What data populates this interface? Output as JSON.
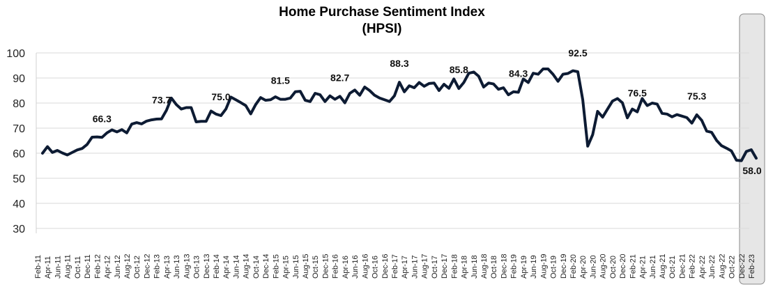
{
  "chart_data": {
    "type": "line",
    "title": "Home Purchase Sentiment Index",
    "subtitle": "(HPSI)",
    "xlabel": "",
    "ylabel": "",
    "ylim": [
      30,
      100
    ],
    "y_ticks": [
      "30",
      "40",
      "50",
      "60",
      "70",
      "80",
      "90",
      "100"
    ],
    "grid": true,
    "line_color": "#0d1b33",
    "highlight_color": "#e6e6e6",
    "x_ticks": [
      "Feb-11",
      "Apr-11",
      "Jun-11",
      "Aug-11",
      "Oct-11",
      "Dec-11",
      "Feb-12",
      "Apr-12",
      "Jun-12",
      "Aug-12",
      "Oct-12",
      "Dec-12",
      "Feb-13",
      "Apr-13",
      "Jun-13",
      "Aug-13",
      "Oct-13",
      "Dec-13",
      "Feb-14",
      "Apr-14",
      "Jun-14",
      "Aug-14",
      "Oct-14",
      "Dec-14",
      "Feb-15",
      "Apr-15",
      "Jun-15",
      "Aug-15",
      "Oct-15",
      "Dec-15",
      "Feb-16",
      "Apr-16",
      "Jun-16",
      "Aug-16",
      "Oct-16",
      "Dec-16",
      "Feb-17",
      "Apr-17",
      "Jun-17",
      "Aug-17",
      "Oct-17",
      "Dec-17",
      "Feb-18",
      "Apr-18",
      "Jun-18",
      "Aug-18",
      "Oct-18",
      "Dec-18",
      "Feb-19",
      "Apr-19",
      "Jun-19",
      "Aug-19",
      "Oct-19",
      "Dec-19",
      "Feb-20",
      "Apr-20",
      "Jun-20",
      "Aug-20",
      "Oct-20",
      "Dec-20",
      "Feb-21",
      "Apr-21",
      "Jun-21",
      "Aug-21",
      "Oct-21",
      "Dec-21",
      "Feb-22",
      "Apr-22",
      "Jun-22",
      "Aug-22",
      "Oct-22",
      "Dec-22",
      "Feb-23"
    ],
    "values": [
      60.0,
      62.6,
      60.3,
      61.1,
      60.1,
      59.3,
      60.3,
      61.3,
      61.9,
      63.5,
      66.4,
      66.5,
      66.3,
      68.1,
      69.3,
      68.5,
      69.4,
      68.1,
      71.6,
      72.2,
      71.7,
      72.8,
      73.3,
      73.6,
      73.7,
      77.1,
      82.0,
      79.4,
      77.6,
      78.2,
      78.2,
      72.5,
      72.7,
      72.7,
      76.8,
      75.6,
      75.0,
      77.6,
      82.4,
      81.3,
      80.2,
      79.0,
      75.7,
      79.4,
      82.2,
      81.1,
      81.3,
      82.5,
      81.5,
      81.5,
      82.0,
      84.5,
      84.7,
      81.1,
      80.6,
      83.9,
      83.3,
      80.6,
      82.9,
      81.5,
      82.7,
      80.1,
      83.9,
      85.2,
      83.1,
      86.4,
      85.0,
      83.1,
      82.0,
      81.3,
      80.6,
      82.9,
      88.3,
      84.5,
      86.9,
      86.1,
      88.2,
      86.7,
      87.8,
      88.0,
      85.0,
      87.5,
      85.9,
      89.6,
      85.8,
      88.2,
      91.9,
      92.4,
      90.7,
      86.4,
      88.0,
      87.6,
      85.5,
      86.1,
      83.3,
      84.5,
      84.3,
      89.6,
      88.2,
      91.9,
      91.5,
      93.6,
      93.6,
      91.5,
      88.7,
      91.5,
      91.8,
      92.9,
      92.5,
      81.3,
      62.8,
      67.4,
      76.7,
      74.4,
      77.6,
      80.8,
      81.8,
      80.1,
      74.1,
      77.6,
      76.5,
      81.8,
      79.0,
      80.0,
      79.6,
      75.9,
      75.6,
      74.5,
      75.4,
      74.8,
      74.2,
      72.0,
      75.3,
      73.1,
      68.8,
      68.3,
      65.1,
      63.0,
      62.0,
      60.9,
      57.2,
      57.0,
      60.7,
      61.4,
      58.0
    ],
    "data_labels": [
      {
        "x": "Feb-12",
        "text": "66.3"
      },
      {
        "x": "Feb-13",
        "text": "73.7"
      },
      {
        "x": "Feb-14",
        "text": "75.0"
      },
      {
        "x": "Feb-15",
        "text": "81.5"
      },
      {
        "x": "Feb-16",
        "text": "82.7"
      },
      {
        "x": "Feb-17",
        "text": "88.3"
      },
      {
        "x": "Feb-18",
        "text": "85.8"
      },
      {
        "x": "Feb-19",
        "text": "84.3"
      },
      {
        "x": "Feb-20",
        "text": "92.5"
      },
      {
        "x": "Feb-21",
        "text": "76.5"
      },
      {
        "x": "Feb-22",
        "text": "75.3"
      },
      {
        "x": "Feb-23",
        "text": "58.0"
      }
    ],
    "highlighted_range": [
      "Dec-22",
      "Feb-23"
    ]
  }
}
